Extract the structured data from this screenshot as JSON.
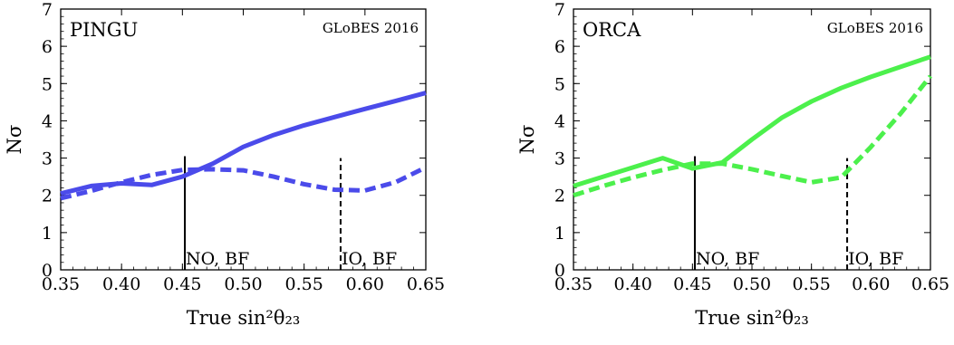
{
  "chart_data": [
    {
      "type": "line",
      "panel_title": "PINGU",
      "watermark": "GLoBES 2016",
      "xlabel": "True sin²θ₂₃",
      "ylabel": "Nσ",
      "xlim": [
        0.35,
        0.65
      ],
      "ylim": [
        0,
        7
      ],
      "xticks": [
        "0.35",
        "0.40",
        "0.45",
        "0.50",
        "0.55",
        "0.60",
        "0.65"
      ],
      "yticks": [
        "0",
        "1",
        "2",
        "3",
        "4",
        "5",
        "6",
        "7"
      ],
      "color": "#4b4bea",
      "series": [
        {
          "style": "solid",
          "x": [
            0.35,
            0.375,
            0.4,
            0.425,
            0.45,
            0.475,
            0.5,
            0.525,
            0.55,
            0.575,
            0.6,
            0.625,
            0.65
          ],
          "y": [
            2.05,
            2.25,
            2.32,
            2.28,
            2.5,
            2.85,
            3.3,
            3.62,
            3.88,
            4.1,
            4.32,
            4.53,
            4.75
          ]
        },
        {
          "style": "dashed",
          "x": [
            0.35,
            0.375,
            0.4,
            0.425,
            0.45,
            0.475,
            0.5,
            0.525,
            0.55,
            0.575,
            0.6,
            0.625,
            0.65
          ],
          "y": [
            1.92,
            2.12,
            2.35,
            2.55,
            2.68,
            2.7,
            2.67,
            2.5,
            2.3,
            2.15,
            2.13,
            2.35,
            2.75
          ]
        }
      ],
      "annotations": [
        {
          "text": "NO, BF",
          "x": 0.452,
          "line": "solid",
          "ytop": 3.05
        },
        {
          "text": "IO, BF",
          "x": 0.58,
          "line": "dashed",
          "ytop": 3.0
        }
      ]
    },
    {
      "type": "line",
      "panel_title": "ORCA",
      "watermark": "GLoBES 2016",
      "xlabel": "True sin²θ₂₃",
      "ylabel": "Nσ",
      "xlim": [
        0.35,
        0.65
      ],
      "ylim": [
        0,
        7
      ],
      "xticks": [
        "0.35",
        "0.40",
        "0.45",
        "0.50",
        "0.55",
        "0.60",
        "0.65"
      ],
      "yticks": [
        "0",
        "1",
        "2",
        "3",
        "4",
        "5",
        "6",
        "7"
      ],
      "color": "#4cf04c",
      "series": [
        {
          "style": "solid",
          "x": [
            0.35,
            0.375,
            0.4,
            0.425,
            0.45,
            0.475,
            0.5,
            0.525,
            0.55,
            0.575,
            0.6,
            0.625,
            0.65
          ],
          "y": [
            2.25,
            2.5,
            2.75,
            3.0,
            2.72,
            2.88,
            3.5,
            4.08,
            4.52,
            4.88,
            5.18,
            5.45,
            5.72
          ]
        },
        {
          "style": "dashed",
          "x": [
            0.35,
            0.375,
            0.4,
            0.425,
            0.45,
            0.475,
            0.5,
            0.525,
            0.55,
            0.575,
            0.6,
            0.625,
            0.65
          ],
          "y": [
            2.0,
            2.25,
            2.48,
            2.68,
            2.85,
            2.85,
            2.7,
            2.52,
            2.35,
            2.48,
            3.3,
            4.2,
            5.2
          ]
        }
      ],
      "annotations": [
        {
          "text": "NO, BF",
          "x": 0.452,
          "line": "solid",
          "ytop": 3.05
        },
        {
          "text": "IO, BF",
          "x": 0.58,
          "line": "dashed",
          "ytop": 3.0
        }
      ]
    }
  ]
}
